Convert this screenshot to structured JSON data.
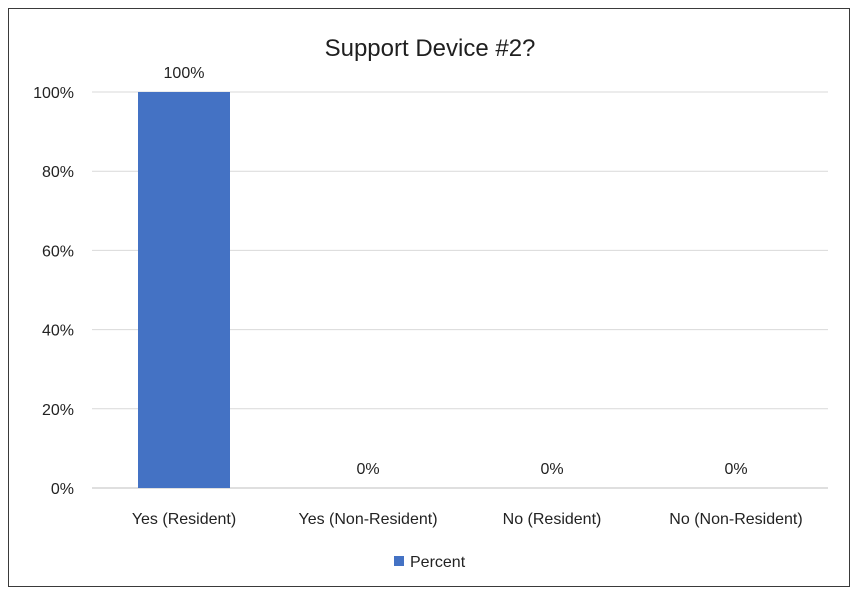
{
  "chart_data": {
    "type": "bar",
    "title": "Support Device #2?",
    "categories": [
      "Yes (Resident)",
      "Yes (Non-Resident)",
      "No (Resident)",
      "No (Non-Resident)"
    ],
    "series": [
      {
        "name": "Percent",
        "values": [
          100,
          0,
          0,
          0
        ],
        "data_labels": [
          "100%",
          "0%",
          "0%",
          "0%"
        ],
        "color": "#4472C4"
      }
    ],
    "y_ticks": [
      "0%",
      "20%",
      "40%",
      "60%",
      "80%",
      "100%"
    ],
    "ylim": [
      0,
      100
    ],
    "grid": true,
    "legend_position": "bottom"
  }
}
